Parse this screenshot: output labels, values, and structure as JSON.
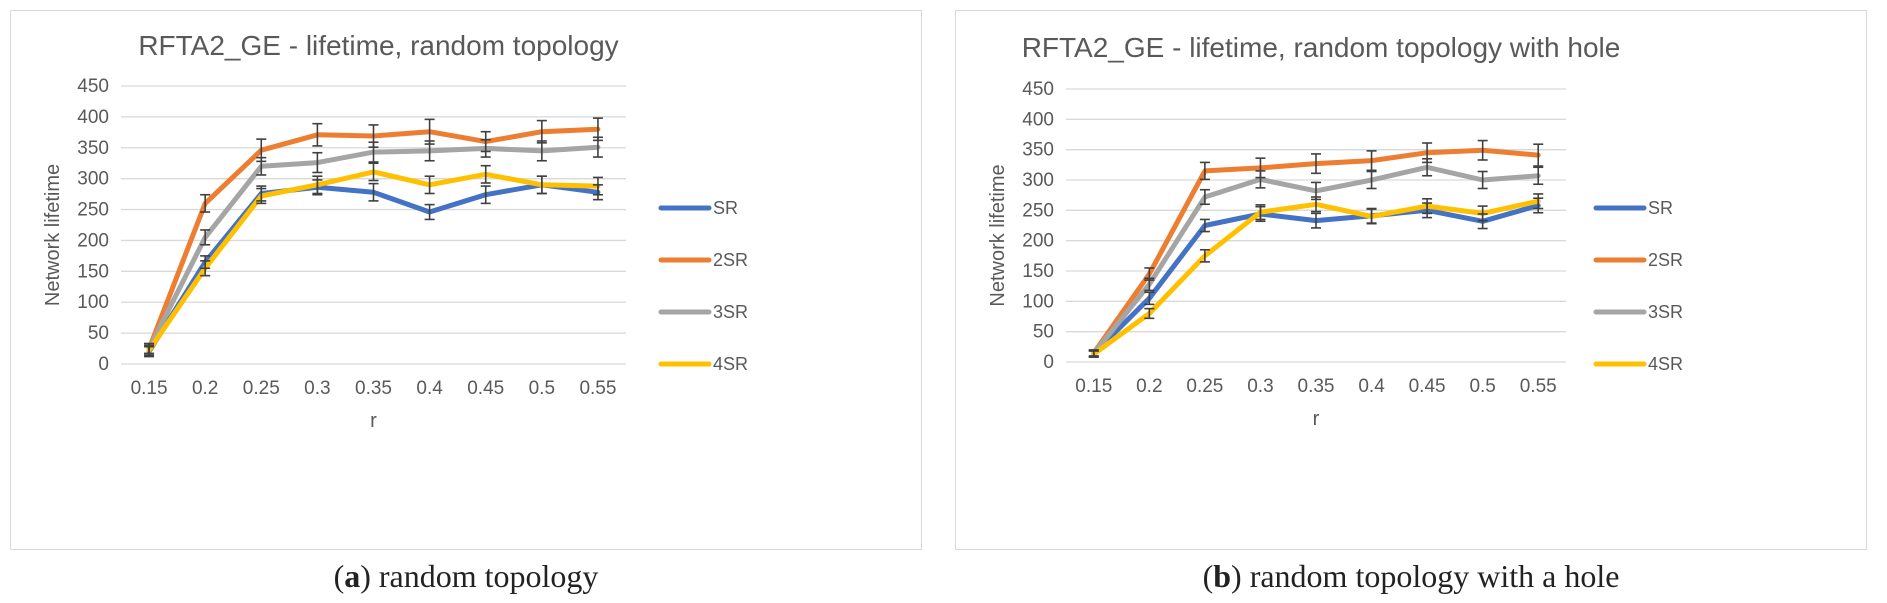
{
  "captions": [
    {
      "letter": "a",
      "text": "random topology"
    },
    {
      "letter": "b",
      "text": "random topology with a hole"
    }
  ],
  "chart_data": [
    {
      "type": "line",
      "title": "RFTA2_GE - lifetime, random topology",
      "xlabel": "r",
      "ylabel": "Network lifetime",
      "categories": [
        "0.15",
        "0.2",
        "0.25",
        "0.3",
        "0.35",
        "0.4",
        "0.45",
        "0.5",
        "0.55"
      ],
      "ylim": [
        0,
        450
      ],
      "yticks": [
        0,
        50,
        100,
        150,
        200,
        250,
        300,
        350,
        400,
        450
      ],
      "grid": true,
      "legend": "right",
      "error_bars": true,
      "series": [
        {
          "name": "SR",
          "color": "#4472C4",
          "values": [
            20,
            165,
            276,
            286,
            278,
            246,
            274,
            290,
            278
          ],
          "errors": [
            8,
            10,
            12,
            12,
            14,
            12,
            14,
            14,
            12
          ]
        },
        {
          "name": "2SR",
          "color": "#ED7D31",
          "values": [
            25,
            260,
            346,
            371,
            369,
            376,
            360,
            376,
            380
          ],
          "errors": [
            8,
            14,
            18,
            18,
            18,
            20,
            16,
            18,
            18
          ]
        },
        {
          "name": "3SR",
          "color": "#A5A5A5",
          "values": [
            25,
            205,
            320,
            326,
            343,
            345,
            349,
            345,
            351
          ],
          "errors": [
            8,
            12,
            14,
            16,
            16,
            16,
            14,
            16,
            16
          ]
        },
        {
          "name": "4SR",
          "color": "#FFC000",
          "values": [
            22,
            155,
            272,
            290,
            311,
            290,
            307,
            290,
            288
          ],
          "errors": [
            8,
            12,
            12,
            14,
            14,
            14,
            14,
            14,
            14
          ]
        }
      ]
    },
    {
      "type": "line",
      "title": "RFTA2_GE - lifetime, random topology with hole",
      "xlabel": "r",
      "ylabel": "Network lifetime",
      "categories": [
        "0.15",
        "0.2",
        "0.25",
        "0.3",
        "0.35",
        "0.4",
        "0.45",
        "0.5",
        "0.55"
      ],
      "ylim": [
        0,
        450
      ],
      "yticks": [
        0,
        50,
        100,
        150,
        200,
        250,
        300,
        350,
        400,
        450
      ],
      "grid": true,
      "legend": "right",
      "error_bars": true,
      "series": [
        {
          "name": "SR",
          "color": "#4472C4",
          "values": [
            14,
            105,
            225,
            244,
            233,
            241,
            250,
            232,
            258
          ],
          "errors": [
            5,
            10,
            10,
            12,
            12,
            12,
            12,
            12,
            12
          ]
        },
        {
          "name": "2SR",
          "color": "#ED7D31",
          "values": [
            15,
            145,
            315,
            320,
            327,
            332,
            345,
            349,
            341
          ],
          "errors": [
            5,
            10,
            14,
            16,
            16,
            16,
            16,
            16,
            18
          ]
        },
        {
          "name": "3SR",
          "color": "#A5A5A5",
          "values": [
            14,
            128,
            272,
            301,
            282,
            300,
            321,
            300,
            307
          ],
          "errors": [
            5,
            10,
            12,
            14,
            14,
            14,
            14,
            14,
            14
          ]
        },
        {
          "name": "4SR",
          "color": "#FFC000",
          "values": [
            13,
            80,
            175,
            247,
            260,
            240,
            257,
            245,
            265
          ],
          "errors": [
            5,
            8,
            10,
            12,
            12,
            12,
            12,
            12,
            12
          ]
        }
      ]
    }
  ]
}
